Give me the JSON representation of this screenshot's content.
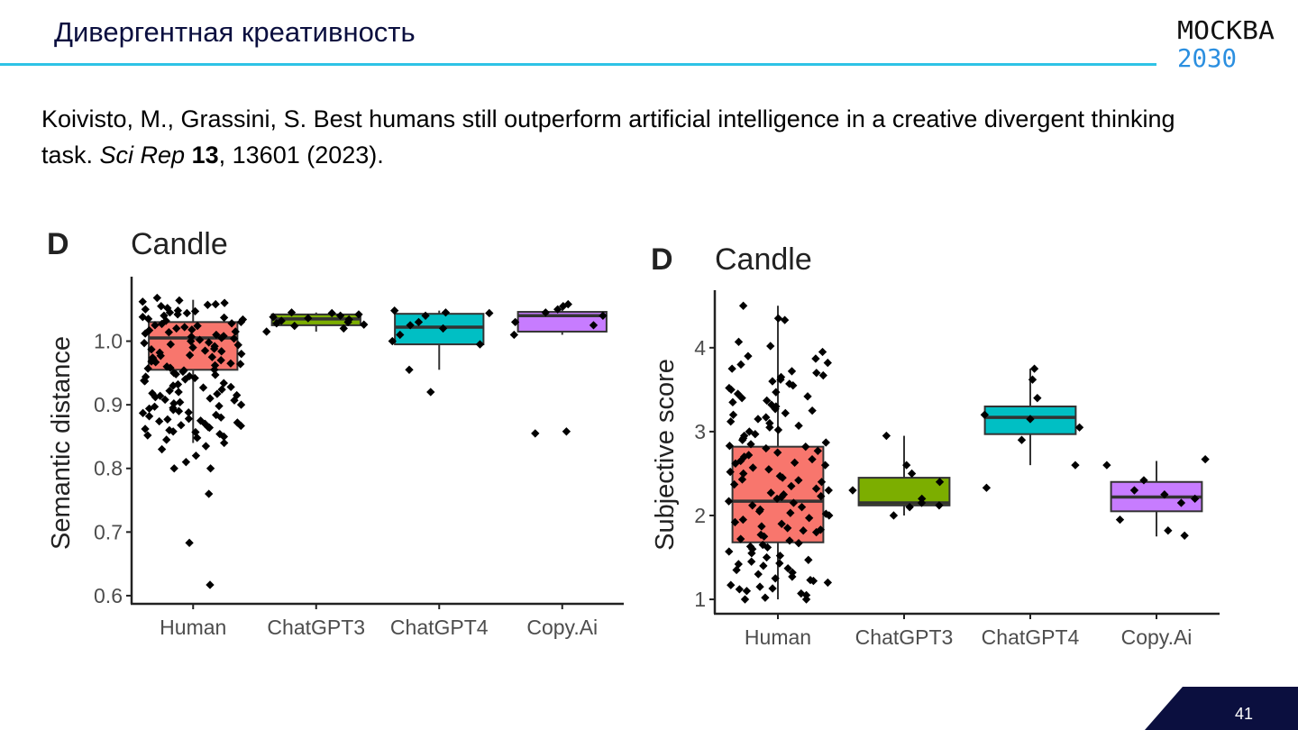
{
  "header": {
    "title": "Дивергентная креативность",
    "logo_top": "МОСКВА",
    "logo_bottom": "2030",
    "accent_color": "#2ec3e6",
    "title_color": "#0b0f3f"
  },
  "citation": {
    "authors": "Koivisto, M., Grassini, S. Best humans still outperform artificial intelligence in a creative divergent thinking task. ",
    "journal": "Sci Rep",
    "volume": "13",
    "pages_year": ", 13601 (2023)."
  },
  "footer": {
    "page_number": "41",
    "corner_color": "#0b0f3f"
  },
  "chart_data": [
    {
      "type": "box",
      "panel_label": "D",
      "title": "Candle",
      "xlabel": "",
      "ylabel": "Semantic distance",
      "categories": [
        "Human",
        "ChatGPT3",
        "ChatGPT4",
        "Copy.Ai"
      ],
      "ylim": [
        0.59,
        1.09
      ],
      "yticks": [
        0.6,
        0.7,
        0.8,
        0.9,
        1.0
      ],
      "ytick_labels": [
        "0.6",
        "0.7",
        "0.8",
        "0.9",
        "1.0"
      ],
      "colors": [
        "#f8766d",
        "#7cae00",
        "#00bfc4",
        "#c77cff"
      ],
      "grid": false,
      "boxes": [
        {
          "q1": 0.955,
          "median": 1.005,
          "q3": 1.03,
          "whisker_low": 0.84,
          "whisker_high": 1.065
        },
        {
          "q1": 1.025,
          "median": 1.035,
          "q3": 1.042,
          "whisker_low": 1.015,
          "whisker_high": 1.045
        },
        {
          "q1": 0.995,
          "median": 1.022,
          "q3": 1.043,
          "whisker_low": 0.955,
          "whisker_high": 1.048
        },
        {
          "q1": 1.015,
          "median": 1.04,
          "q3": 1.046,
          "whisker_low": 1.01,
          "whisker_high": 1.058
        }
      ],
      "points": [
        [
          1.062,
          1.055,
          1.05,
          1.045,
          1.04,
          1.035,
          1.03,
          1.025,
          1.02,
          1.015,
          1.01,
          1.005,
          1.0,
          0.995,
          0.99,
          0.985,
          0.98,
          0.975,
          0.97,
          0.965,
          0.96,
          0.955,
          0.95,
          0.945,
          0.94,
          0.93,
          0.92,
          0.915,
          0.91,
          0.9,
          0.895,
          0.89,
          0.88,
          0.875,
          0.87,
          0.865,
          0.86,
          0.85,
          0.845,
          0.84,
          0.835,
          0.83,
          0.82,
          0.81,
          0.8,
          0.8,
          0.76,
          0.683,
          0.617,
          1.068,
          1.058,
          1.048,
          1.038,
          1.028,
          1.018,
          1.008,
          0.998,
          0.988,
          0.978,
          0.968,
          0.958,
          0.948,
          0.938,
          0.928,
          0.918,
          0.908,
          0.898,
          0.888,
          0.878,
          0.868,
          0.858,
          0.848,
          1.064,
          1.052,
          1.042,
          1.032,
          1.022,
          1.012,
          1.002,
          0.992,
          0.982,
          0.972,
          0.962,
          0.952,
          0.942,
          0.932,
          0.922,
          0.912,
          0.902,
          0.892,
          0.882,
          0.872,
          0.862,
          0.852,
          1.06,
          1.044,
          1.034,
          1.024,
          1.014,
          1.004,
          0.994,
          0.984,
          0.974,
          0.964,
          0.954,
          0.944,
          0.934,
          0.924,
          0.914,
          0.904,
          0.894,
          0.884,
          0.874,
          0.864,
          0.854,
          1.057,
          1.047,
          1.037,
          1.027,
          1.017,
          1.007,
          0.997,
          0.987,
          0.977,
          0.967,
          0.957,
          0.947,
          0.937,
          0.927,
          0.917,
          0.907,
          0.897,
          0.887,
          0.877,
          0.867,
          0.857
        ],
        [
          1.042,
          1.04,
          1.038,
          1.036,
          1.034,
          1.032,
          1.03,
          1.028,
          1.026,
          1.024,
          1.02,
          1.015,
          1.045,
          1.044
        ],
        [
          1.048,
          1.045,
          1.04,
          1.03,
          1.02,
          1.01,
          1.0,
          0.995,
          0.955,
          0.92,
          1.044,
          1.025
        ],
        [
          1.058,
          1.05,
          1.045,
          1.04,
          1.03,
          1.025,
          1.01,
          0.858,
          0.855,
          1.055
        ]
      ]
    },
    {
      "type": "box",
      "panel_label": "D",
      "title": "Candle",
      "xlabel": "",
      "ylabel": "Subjective score",
      "categories": [
        "Human",
        "ChatGPT3",
        "ChatGPT4",
        "Copy.Ai"
      ],
      "ylim": [
        0.85,
        4.6
      ],
      "yticks": [
        1,
        2,
        3,
        4
      ],
      "ytick_labels": [
        "1",
        "2",
        "3",
        "4"
      ],
      "colors": [
        "#f8766d",
        "#7cae00",
        "#00bfc4",
        "#c77cff"
      ],
      "grid": false,
      "boxes": [
        {
          "q1": 1.68,
          "median": 2.17,
          "q3": 2.82,
          "whisker_low": 1.0,
          "whisker_high": 4.5
        },
        {
          "q1": 2.12,
          "median": 2.15,
          "q3": 2.45,
          "whisker_low": 2.0,
          "whisker_high": 2.95
        },
        {
          "q1": 2.97,
          "median": 3.17,
          "q3": 3.3,
          "whisker_low": 2.6,
          "whisker_high": 3.75
        },
        {
          "q1": 2.05,
          "median": 2.22,
          "q3": 2.4,
          "whisker_low": 1.75,
          "whisker_high": 2.65
        }
      ],
      "points": [
        [
          4.5,
          4.35,
          4.33,
          4.07,
          4.02,
          3.95,
          3.8,
          3.75,
          3.7,
          3.65,
          3.6,
          3.55,
          3.5,
          3.45,
          3.4,
          3.35,
          3.3,
          3.25,
          3.2,
          3.15,
          3.1,
          3.05,
          3.0,
          2.95,
          2.9,
          2.85,
          2.8,
          2.75,
          2.7,
          2.65,
          2.6,
          2.55,
          2.5,
          2.45,
          2.4,
          2.35,
          2.3,
          2.25,
          2.2,
          2.15,
          2.1,
          2.05,
          2.0,
          1.95,
          1.9,
          1.85,
          1.8,
          1.75,
          1.7,
          1.65,
          1.6,
          1.55,
          1.5,
          1.45,
          1.4,
          1.35,
          1.3,
          1.25,
          1.2,
          1.15,
          1.1,
          1.05,
          1.0,
          1.0,
          3.72,
          3.52,
          3.32,
          3.12,
          2.92,
          2.72,
          2.52,
          2.32,
          2.12,
          1.92,
          1.72,
          1.52,
          1.32,
          1.12,
          3.62,
          3.42,
          3.22,
          3.02,
          2.82,
          2.62,
          2.42,
          2.22,
          2.02,
          1.82,
          1.62,
          1.42,
          1.22,
          1.02,
          3.67,
          3.47,
          3.27,
          3.07,
          2.87,
          2.67,
          2.47,
          2.27,
          2.07,
          1.87,
          1.67,
          1.47,
          1.27,
          1.07,
          3.57,
          3.37,
          3.17,
          2.97,
          2.77,
          2.57,
          2.37,
          2.17,
          1.97,
          1.77,
          1.57,
          1.37,
          1.17,
          3.82,
          3.87,
          3.9,
          2.83,
          2.63,
          2.43,
          2.23,
          2.03,
          1.83,
          1.63,
          1.43,
          1.23,
          1.13
        ],
        [
          2.95,
          2.6,
          2.5,
          2.4,
          2.3,
          2.2,
          2.15,
          2.12,
          2.1,
          2.0
        ],
        [
          3.75,
          3.62,
          3.4,
          3.2,
          3.15,
          3.05,
          2.9,
          2.6,
          2.33
        ],
        [
          2.67,
          2.6,
          2.42,
          2.3,
          2.25,
          2.2,
          2.15,
          1.95,
          1.82,
          1.76
        ]
      ]
    }
  ]
}
